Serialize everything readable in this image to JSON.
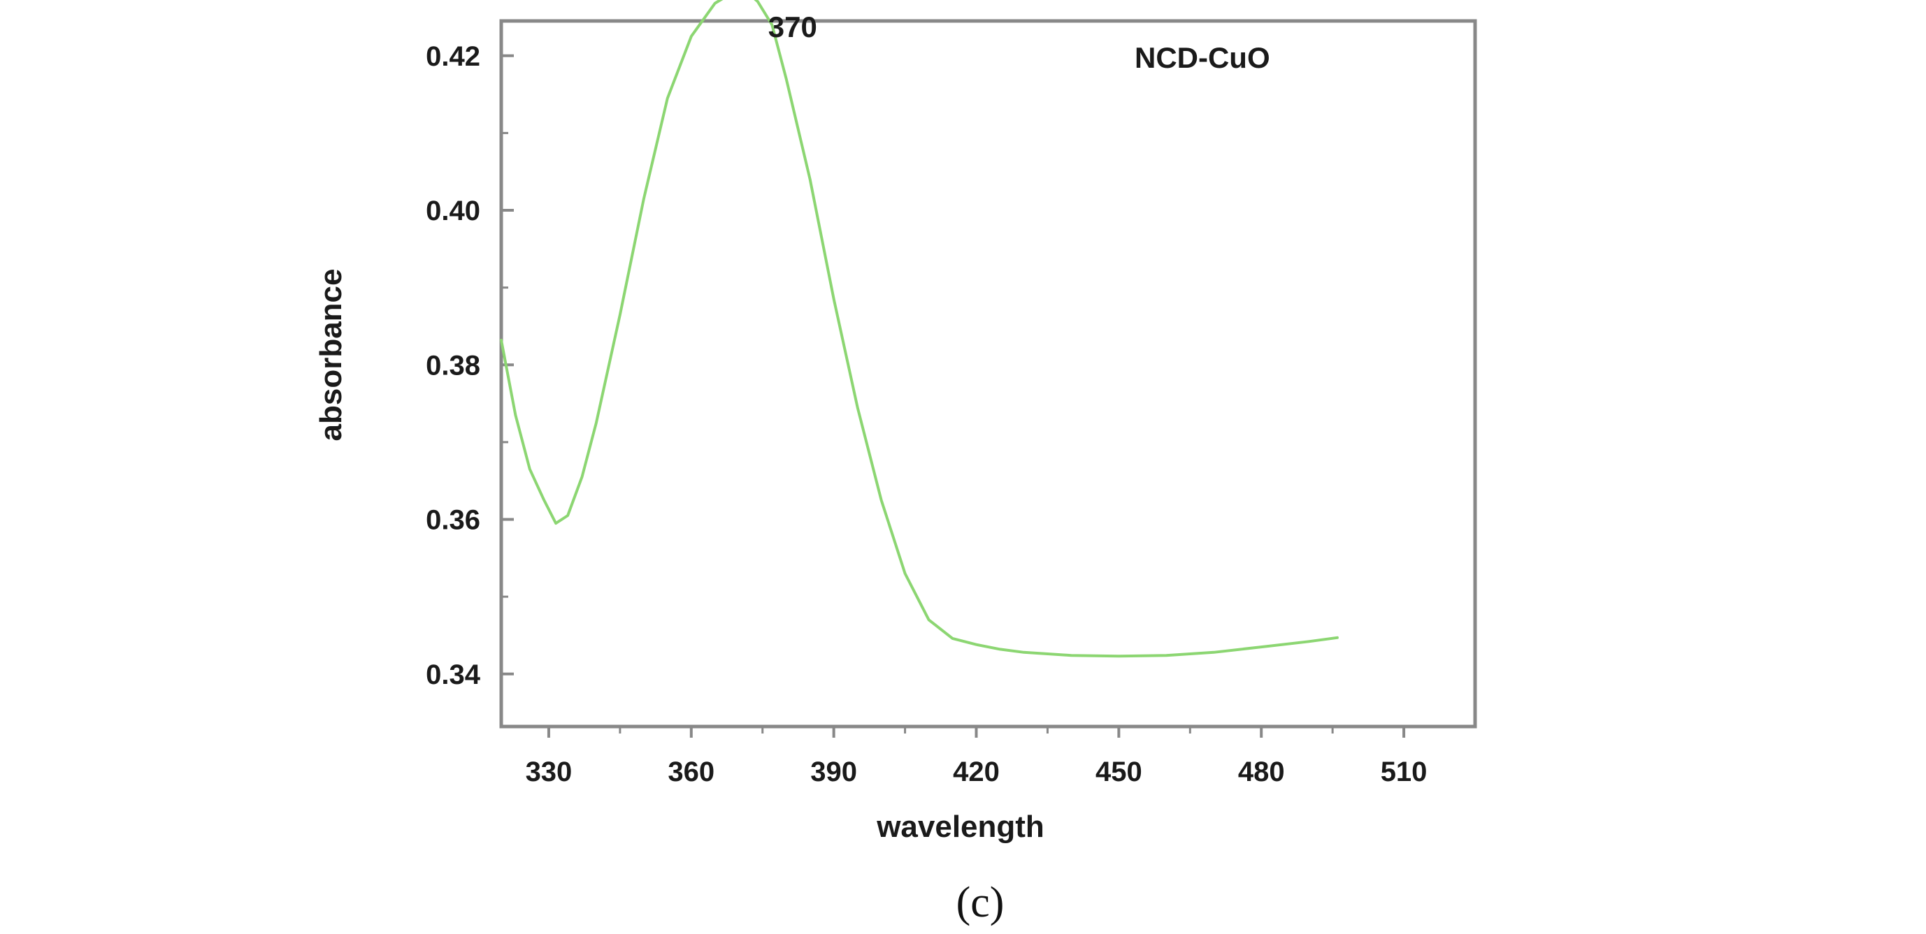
{
  "chart_data": {
    "type": "line",
    "xlabel": "wavelength",
    "ylabel": "absorbance",
    "xlim": [
      320,
      525
    ],
    "ylim": [
      0.3332,
      0.4245
    ],
    "x_ticks": [
      330,
      360,
      390,
      420,
      450,
      480,
      510
    ],
    "y_ticks": [
      "0.34",
      "0.36",
      "0.38",
      "0.40",
      "0.42"
    ],
    "legend": "NCD-CuO",
    "legend_position": "top-right",
    "grid": false,
    "annotations": [
      {
        "text": "370",
        "x": 370,
        "y": 0.4235
      }
    ],
    "series": [
      {
        "color": "#8cd672",
        "x": [
          320,
          323,
          326,
          329,
          331.5,
          334,
          337,
          340,
          345,
          350,
          355,
          360,
          365,
          368,
          370,
          372,
          374,
          377,
          380,
          385,
          390,
          395,
          400,
          405,
          410,
          415,
          420,
          425,
          430,
          440,
          450,
          460,
          470,
          480,
          490,
          496
        ],
        "y": [
          0.3832,
          0.3735,
          0.3665,
          0.3625,
          0.3595,
          0.3605,
          0.3655,
          0.3725,
          0.3865,
          0.4015,
          0.4145,
          0.4225,
          0.4268,
          0.4279,
          0.4283,
          0.4281,
          0.427,
          0.424,
          0.417,
          0.404,
          0.3885,
          0.3745,
          0.3625,
          0.353,
          0.347,
          0.3446,
          0.3438,
          0.3432,
          0.3428,
          0.3424,
          0.3423,
          0.3424,
          0.3428,
          0.3435,
          0.3442,
          0.3447
        ]
      }
    ]
  },
  "caption": "(c)"
}
